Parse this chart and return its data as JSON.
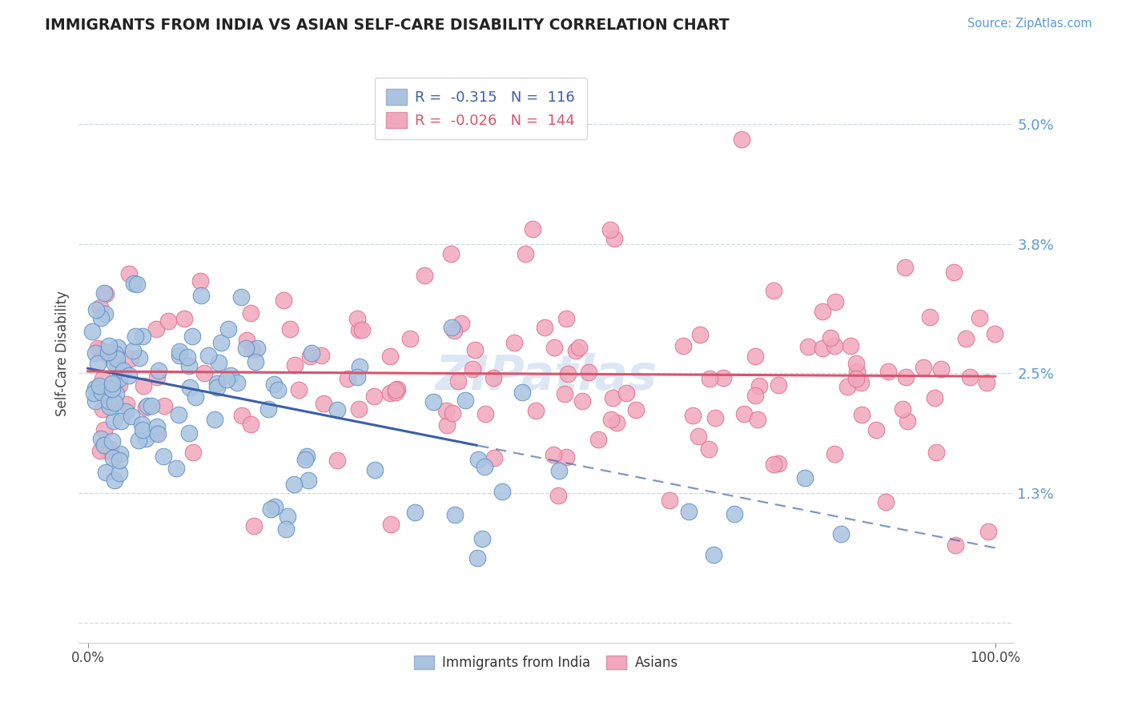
{
  "title": "IMMIGRANTS FROM INDIA VS ASIAN SELF-CARE DISABILITY CORRELATION CHART",
  "source": "Source: ZipAtlas.com",
  "ylabel": "Self-Care Disability",
  "ytick_vals": [
    0.0,
    1.3,
    2.5,
    3.8,
    5.0
  ],
  "ytick_labels": [
    "",
    "1.3%",
    "2.5%",
    "3.8%",
    "5.0%"
  ],
  "xlim": [
    -1,
    102
  ],
  "ylim": [
    -0.2,
    5.6
  ],
  "legend_r_blue": "-0.315",
  "legend_n_blue": "116",
  "legend_r_pink": "-0.026",
  "legend_n_pink": "144",
  "legend_label_blue": "Immigrants from India",
  "legend_label_pink": "Asians",
  "blue_color": "#aac4e0",
  "pink_color": "#f2a8bc",
  "blue_line_color": "#3a5fa8",
  "pink_line_color": "#d9546e",
  "blue_edge_color": "#6090c8",
  "pink_edge_color": "#e07090",
  "watermark_color": "#c5d8ec",
  "grid_color": "#d0d8e0",
  "title_color": "#222222",
  "source_color": "#5b9bd5",
  "ytick_color": "#5b9bd5",
  "spine_color": "#cccccc",
  "blue_regression_intercept": 2.55,
  "blue_regression_slope": -0.018,
  "blue_solid_end": 42,
  "pink_regression_intercept": 2.52,
  "pink_regression_slope": -0.0005
}
